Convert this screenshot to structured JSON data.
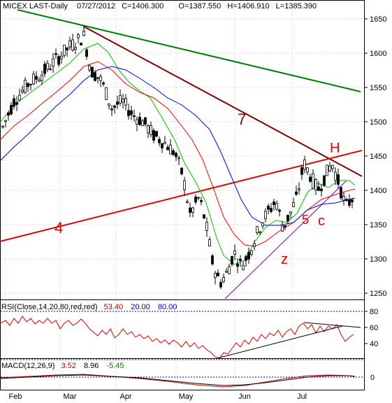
{
  "chart_data": [
    {
      "type": "candlestick",
      "symbol": "MICEX",
      "header": {
        "name": "MICEX LAST-Daily",
        "date": "07/27/2012",
        "close": "C=1406.300",
        "open": "O=1387.550",
        "high": "H=1406.910",
        "low": "L=1385.390"
      },
      "ylim": [
        1240,
        1680
      ],
      "yticks": [
        1250,
        1300,
        1350,
        1400,
        1450,
        1500,
        1550,
        1600,
        1650
      ],
      "xticks": [
        "Feb",
        "Mar",
        "Apr",
        "May",
        "Jun",
        "Jul"
      ],
      "annotations": {
        "trend_green": "",
        "trend_brown": "7",
        "trend_red": "4",
        "H": "H",
        "five": "5",
        "c": "c",
        "z": "z"
      },
      "moving_averages": [
        {
          "color": "#00c000"
        },
        {
          "color": "#ff0000"
        },
        {
          "color": "#0000ff"
        }
      ],
      "series_colors": {
        "candle": "#000000",
        "green_line": "#008000",
        "brown_line": "#800000",
        "red_line": "#e00000",
        "purple_line": "#8000c0"
      }
    },
    {
      "type": "line",
      "label": "RSI(Close,14,20,80,red,red)",
      "value": "53.40",
      "low_level": "20.00",
      "high_level": "80.00",
      "ylim": [
        15,
        90
      ],
      "yticks": [
        40,
        60,
        80
      ]
    },
    {
      "type": "line",
      "label": "MACD(12,26,9)",
      "value1": "3.52",
      "value2": "8.96",
      "value3": "-5.45",
      "yticks": [
        0
      ]
    }
  ]
}
